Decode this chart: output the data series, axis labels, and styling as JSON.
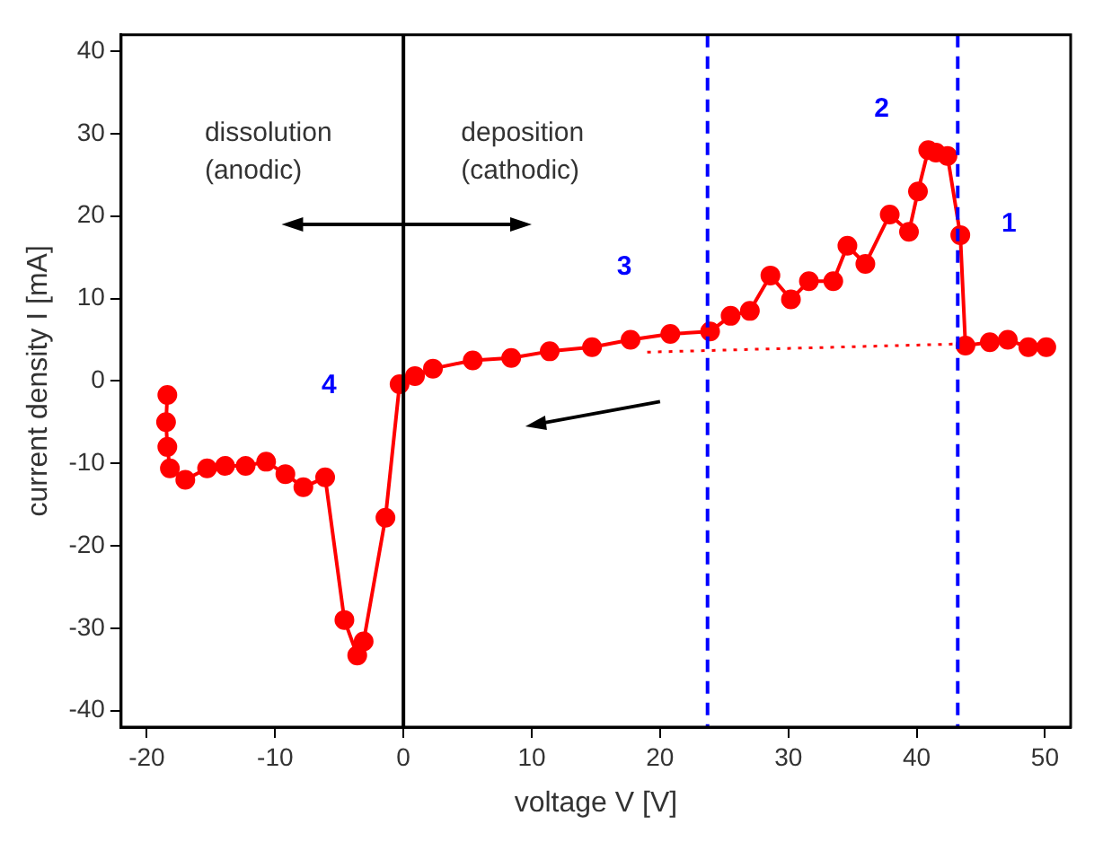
{
  "chart_data": {
    "type": "line",
    "xlabel": "voltage V [V]",
    "ylabel": "current density I [mA]",
    "xlim": [
      -22,
      52
    ],
    "ylim": [
      -42,
      42
    ],
    "xticks": [
      -20,
      -10,
      0,
      10,
      20,
      30,
      40,
      50
    ],
    "yticks": [
      -40,
      -30,
      -20,
      -10,
      0,
      10,
      20,
      30,
      40
    ],
    "grid": false,
    "legend": false,
    "marker": "circle",
    "line_style": "solid",
    "series": [
      {
        "color": "#ff0000",
        "x": [
          -18.4,
          -18.5,
          -18.4,
          -18.2,
          -17,
          -15.3,
          -13.9,
          -12.3,
          -10.7,
          -9.2,
          -7.8,
          -6.1,
          -4.6,
          -3.6,
          -3.1,
          -1.4,
          -0.3,
          0.9,
          2.3,
          5.4,
          8.4,
          11.4,
          14.7,
          17.7,
          20.8,
          23.9,
          25.5,
          27,
          28.6,
          30.2,
          31.6,
          33.5,
          34.6,
          36,
          37.9,
          39.4,
          40.1,
          40.9,
          41.5,
          42.4,
          43.4,
          43.8,
          45.7,
          47.1,
          48.7,
          50.1
        ],
        "values": [
          -1.7,
          -5,
          -8,
          -10.6,
          -12,
          -10.6,
          -10.3,
          -10.3,
          -9.8,
          -11.3,
          -12.9,
          -11.7,
          -29,
          -33.3,
          -31.6,
          -16.6,
          -0.4,
          0.6,
          1.5,
          2.5,
          2.8,
          3.6,
          4.1,
          5,
          5.7,
          6,
          7.9,
          8.5,
          12.8,
          9.9,
          12.1,
          12.1,
          16.4,
          14.2,
          20.2,
          18.1,
          23,
          28,
          27.7,
          27.3,
          17.7,
          4.3,
          4.7,
          5,
          4.1,
          4.1
        ]
      },
      {
        "color": "#ff0000",
        "marker": "none",
        "line_style": "dotted",
        "x": [
          19,
          43.5
        ],
        "values": [
          3.5,
          4.5
        ]
      }
    ],
    "ref_lines": [
      {
        "axis": "x",
        "value": 0,
        "color": "#000000",
        "line_style": "solid"
      },
      {
        "axis": "x",
        "value": 23.7,
        "color": "#0000ff",
        "line_style": "dashed"
      },
      {
        "axis": "x",
        "value": 43.2,
        "color": "#0000ff",
        "line_style": "dashed"
      }
    ],
    "annotations": [
      "dissolution\n(anodic)",
      "deposition\n(cathodic)",
      "1",
      "2",
      "3",
      "4"
    ]
  }
}
